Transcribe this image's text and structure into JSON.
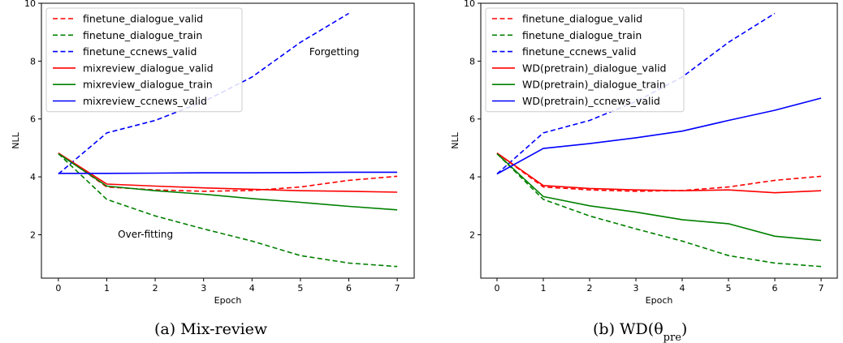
{
  "chart_data": [
    {
      "type": "line",
      "caption": "(a) Mix-review",
      "xlabel": "Epoch",
      "ylabel": "NLL",
      "xlim": [
        -0.35,
        7.35
      ],
      "ylim": [
        0.5,
        10.0
      ],
      "x_ticks": [
        0,
        1,
        2,
        3,
        4,
        5,
        6,
        7
      ],
      "y_ticks": [
        2,
        4,
        6,
        8,
        10
      ],
      "legend_position": "top-left",
      "grid": false,
      "annotations": [
        {
          "text": "Forgetting",
          "x": 5.7,
          "y": 8.2
        },
        {
          "text": "Over-fitting",
          "x": 1.8,
          "y": 1.9
        }
      ],
      "series": [
        {
          "name": "finetune_dialogue_valid",
          "color": "#ff0000",
          "dash": true,
          "x": [
            0,
            1,
            2,
            3,
            4,
            5,
            6,
            7
          ],
          "y": [
            4.82,
            3.65,
            3.55,
            3.5,
            3.53,
            3.65,
            3.88,
            4.02
          ]
        },
        {
          "name": "finetune_dialogue_train",
          "color": "#008000",
          "dash": true,
          "x": [
            0,
            1,
            2,
            3,
            4,
            5,
            6,
            7
          ],
          "y": [
            4.8,
            3.22,
            2.65,
            2.2,
            1.78,
            1.28,
            1.02,
            0.9
          ]
        },
        {
          "name": "finetune_ccnews_valid",
          "color": "#0000ff",
          "dash": true,
          "x": [
            0,
            1,
            2,
            3,
            4,
            5,
            6
          ],
          "y": [
            4.1,
            5.52,
            5.95,
            6.6,
            7.45,
            8.65,
            9.65
          ]
        },
        {
          "name": "mixreview_dialogue_valid",
          "color": "#ff0000",
          "dash": false,
          "x": [
            0,
            1,
            2,
            3,
            4,
            5,
            6,
            7
          ],
          "y": [
            4.82,
            3.75,
            3.68,
            3.62,
            3.57,
            3.52,
            3.5,
            3.47
          ]
        },
        {
          "name": "mixreview_dialogue_train",
          "color": "#008000",
          "dash": false,
          "x": [
            0,
            1,
            2,
            3,
            4,
            5,
            6,
            7
          ],
          "y": [
            4.8,
            3.68,
            3.52,
            3.4,
            3.25,
            3.12,
            2.98,
            2.86
          ]
        },
        {
          "name": "mixreview_ccnews_valid",
          "color": "#0000ff",
          "dash": false,
          "x": [
            0,
            1,
            2,
            3,
            4,
            5,
            6,
            7
          ],
          "y": [
            4.12,
            4.12,
            4.13,
            4.14,
            4.14,
            4.15,
            4.16,
            4.16
          ]
        }
      ]
    },
    {
      "type": "line",
      "caption": "(b) WD(θ",
      "caption_subscript": "pre",
      "caption_suffix": ")",
      "xlabel": "Epoch",
      "ylabel": "NLL",
      "xlim": [
        -0.35,
        7.35
      ],
      "ylim": [
        0.5,
        10.0
      ],
      "x_ticks": [
        0,
        1,
        2,
        3,
        4,
        5,
        6,
        7
      ],
      "y_ticks": [
        2,
        4,
        6,
        8,
        10
      ],
      "legend_position": "top-left",
      "grid": false,
      "annotations": [],
      "series": [
        {
          "name": "finetune_dialogue_valid",
          "color": "#ff0000",
          "dash": true,
          "x": [
            0,
            1,
            2,
            3,
            4,
            5,
            6,
            7
          ],
          "y": [
            4.82,
            3.65,
            3.55,
            3.5,
            3.53,
            3.65,
            3.88,
            4.02
          ]
        },
        {
          "name": "finetune_dialogue_train",
          "color": "#008000",
          "dash": true,
          "x": [
            0,
            1,
            2,
            3,
            4,
            5,
            6,
            7
          ],
          "y": [
            4.8,
            3.22,
            2.65,
            2.2,
            1.78,
            1.28,
            1.02,
            0.9
          ]
        },
        {
          "name": "finetune_ccnews_valid",
          "color": "#0000ff",
          "dash": true,
          "x": [
            0,
            1,
            2,
            3,
            4,
            5,
            6
          ],
          "y": [
            4.1,
            5.52,
            5.95,
            6.6,
            7.45,
            8.65,
            9.65
          ]
        },
        {
          "name": "WD(pretrain)_dialogue_valid",
          "color": "#ff0000",
          "dash": false,
          "x": [
            0,
            1,
            2,
            3,
            4,
            5,
            6,
            7
          ],
          "y": [
            4.82,
            3.7,
            3.6,
            3.55,
            3.52,
            3.55,
            3.45,
            3.52
          ]
        },
        {
          "name": "WD(pretrain)_dialogue_train",
          "color": "#008000",
          "dash": false,
          "x": [
            0,
            1,
            2,
            3,
            4,
            5,
            6,
            7
          ],
          "y": [
            4.8,
            3.32,
            3.0,
            2.78,
            2.52,
            2.38,
            1.95,
            1.8
          ]
        },
        {
          "name": "WD(pretrain)_ccnews_valid",
          "color": "#0000ff",
          "dash": false,
          "x": [
            0,
            1,
            2,
            3,
            4,
            5,
            6,
            7
          ],
          "y": [
            4.1,
            4.98,
            5.15,
            5.35,
            5.58,
            5.95,
            6.3,
            6.72
          ]
        }
      ]
    }
  ]
}
